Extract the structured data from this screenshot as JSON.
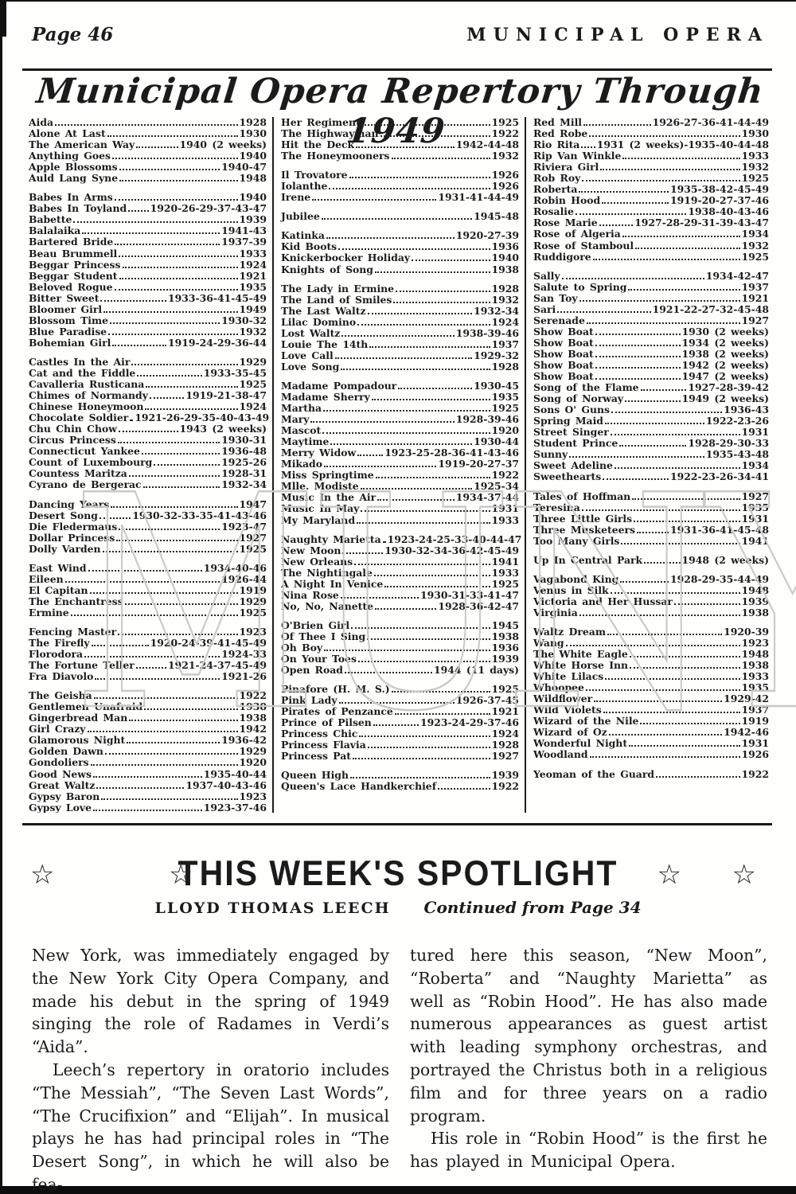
{
  "page": {
    "header_left": "Page 46",
    "header_right": "MUNICIPAL OPERA",
    "title": "Municipal Opera Repertory Through 1949"
  },
  "watermark": "MUNY",
  "repertory": {
    "columns": [
      {
        "groups": [
          [
            [
              "Aida",
              "1928"
            ],
            [
              "Alone At Last",
              "1930"
            ],
            [
              "The American Way",
              "1940 (2 weeks)"
            ],
            [
              "Anything Goes",
              "1940"
            ],
            [
              "Apple Blossoms",
              "1940-47"
            ],
            [
              "Auld Lang Syne",
              "1948"
            ]
          ],
          [
            [
              "Babes In Arms",
              "1940"
            ],
            [
              "Babes In Toyland",
              "1920-26-29-37-43-47"
            ],
            [
              "Babette",
              "1939"
            ],
            [
              "Balalaika",
              "1941-43"
            ],
            [
              "Bartered Bride",
              "1937-39"
            ],
            [
              "Beau Brummell",
              "1933"
            ],
            [
              "Beggar Princess",
              "1924"
            ],
            [
              "Beggar Student",
              "1921"
            ],
            [
              "Beloved Rogue",
              "1935"
            ],
            [
              "Bitter Sweet",
              "1933-36-41-45-49"
            ],
            [
              "Bloomer Girl",
              "1949"
            ],
            [
              "Blossom Time",
              "1930-32"
            ],
            [
              "Blue Paradise",
              "1932"
            ],
            [
              "Bohemian Girl",
              "1919-24-29-36-44"
            ]
          ],
          [
            [
              "Castles In the Air",
              "1929"
            ],
            [
              "Cat and the Fiddle",
              "1933-35-45"
            ],
            [
              "Cavalleria Rusticana",
              "1925"
            ],
            [
              "Chimes of Normandy",
              "1919-21-38-47"
            ],
            [
              "Chinese Honeymoon",
              "1924"
            ],
            [
              "Chocolate Soldier",
              "1921-26-29-35-40-43-49"
            ],
            [
              "Chu Chin Chow",
              "1943 (2 weeks)"
            ],
            [
              "Circus Princess",
              "1930-31"
            ],
            [
              "Connecticut Yankee",
              "1936-48"
            ],
            [
              "Count of Luxembourg",
              "1925-26"
            ],
            [
              "Countess Maritza",
              "1928-31"
            ],
            [
              "Cyrano de Bergerac",
              "1932-34"
            ]
          ],
          [
            [
              "Dancing Years",
              "1947"
            ],
            [
              "Desert Song",
              "1930-32-33-35-41-43-46"
            ],
            [
              "Die Fledermaus",
              "1923-47"
            ],
            [
              "Dollar Princess",
              "1927"
            ],
            [
              "Dolly Varden",
              "1925"
            ]
          ],
          [
            [
              "East Wind",
              "1934-40-46"
            ],
            [
              "Eileen",
              "1926-44"
            ],
            [
              "El Capitan",
              "1919"
            ],
            [
              "The Enchantress",
              "1929"
            ],
            [
              "Ermine",
              "1925"
            ]
          ],
          [
            [
              "Fencing Master",
              "1923"
            ],
            [
              "The Firefly",
              "1920-24-39-41-45-49"
            ],
            [
              "Florodora",
              "1924-33"
            ],
            [
              "The Fortune Teller",
              "1921-24-37-45-49"
            ],
            [
              "Fra Diavolo",
              "1921-26"
            ]
          ],
          [
            [
              "The Geisha",
              "1922"
            ],
            [
              "Gentlemen Unafraid",
              "1938"
            ],
            [
              "Gingerbread Man",
              "1938"
            ],
            [
              "Girl Crazy",
              "1942"
            ],
            [
              "Glamorous Night",
              "1936-42"
            ],
            [
              "Golden Dawn",
              "1929"
            ],
            [
              "Gondoliers",
              "1920"
            ],
            [
              "Good News",
              "1935-40-44"
            ],
            [
              "Great Waltz",
              "1937-40-43-46"
            ],
            [
              "Gypsy Baron",
              "1923"
            ],
            [
              "Gypsy Love",
              "1923-37-46"
            ]
          ]
        ]
      },
      {
        "groups": [
          [
            [
              "Her Regiment",
              "1925"
            ],
            [
              "The Highwayman",
              "1922"
            ],
            [
              "Hit the Deck",
              "1942-44-48"
            ],
            [
              "The Honeymooners",
              "1932"
            ]
          ],
          [
            [
              "Il Trovatore",
              "1926"
            ],
            [
              "Iolanthe",
              "1926"
            ],
            [
              "Irene",
              "1931-41-44-49"
            ]
          ],
          [
            [
              "Jubilee",
              "1945-48"
            ]
          ],
          [
            [
              "Katinka",
              "1920-27-39"
            ],
            [
              "Kid Boots",
              "1936"
            ],
            [
              "Knickerbocker Holiday",
              "1940"
            ],
            [
              "Knights of Song",
              "1938"
            ]
          ],
          [
            [
              "The Lady in Ermine",
              "1928"
            ],
            [
              "The Land of Smiles",
              "1932"
            ],
            [
              "The Last Waltz",
              "1932-34"
            ],
            [
              "Lilac Domino",
              "1924"
            ],
            [
              "Lost Waltz",
              "1938-39-46"
            ],
            [
              "Louie The 14th",
              "1937"
            ],
            [
              "Love Call",
              "1929-32"
            ],
            [
              "Love Song",
              "1928"
            ]
          ],
          [
            [
              "Madame Pompadour",
              "1930-45"
            ],
            [
              "Madame Sherry",
              "1935"
            ],
            [
              "Martha",
              "1925"
            ],
            [
              "Mary",
              "1928-39-46"
            ],
            [
              "Mascot",
              "1920"
            ],
            [
              "Maytime",
              "1930-44"
            ],
            [
              "Merry Widow",
              "1923-25-28-36-41-43-46"
            ],
            [
              "Mikado",
              "1919-20-27-37"
            ],
            [
              "Miss Springtime",
              "1922"
            ],
            [
              "Mlle. Modiste",
              "1925-34"
            ],
            [
              "Music In the Air",
              "1934-37-44"
            ],
            [
              "Music In May",
              "1931"
            ],
            [
              "My Maryland",
              "1933"
            ]
          ],
          [
            [
              "Naughty Marietta",
              "1923-24-25-33-40-44-47"
            ],
            [
              "New Moon",
              "1930-32-34-36-42-45-49"
            ],
            [
              "New Orleans",
              "1941"
            ],
            [
              "The Nightingale",
              "1933"
            ],
            [
              "A Night In Venice",
              "1925"
            ],
            [
              "Nina Rose",
              "1930-31-33-41-47"
            ],
            [
              "No, No, Nanette",
              "1928-36-42-47"
            ]
          ],
          [
            [
              "O'Brien Girl",
              "1945"
            ],
            [
              "Of Thee I Sing",
              "1938"
            ],
            [
              "Oh Boy",
              "1936"
            ],
            [
              "On Your Toes",
              "1939"
            ],
            [
              "Open Road",
              "1944 (11 days)"
            ]
          ],
          [
            [
              "Pinafore (H. M. S.)",
              "1925"
            ],
            [
              "Pink Lady",
              "1926-37-45"
            ],
            [
              "Pirates of Penzance",
              "1921"
            ],
            [
              "Prince of Pilsen",
              "1923-24-29-37-46"
            ],
            [
              "Princess Chic",
              "1924"
            ],
            [
              "Princess Flavia",
              "1928"
            ],
            [
              "Princess Pat",
              "1927"
            ]
          ],
          [
            [
              "Queen High",
              "1939"
            ],
            [
              "Queen's Lace Handkerchief",
              "1922"
            ]
          ]
        ]
      },
      {
        "groups": [
          [
            [
              "Red Mill",
              "1926-27-36-41-44-49"
            ],
            [
              "Red Robe",
              "1930"
            ],
            [
              "Rio Rita",
              "1931 (2 weeks)-1935-40-44-48"
            ],
            [
              "Rip Van Winkle",
              "1933"
            ],
            [
              "Riviera Girl",
              "1932"
            ],
            [
              "Rob Roy",
              "1925"
            ],
            [
              "Roberta",
              "1935-38-42-45-49"
            ],
            [
              "Robin Hood",
              "1919-20-27-37-46"
            ],
            [
              "Rosalie",
              "1938-40-43-46"
            ],
            [
              "Rose Marie",
              "1927-28-29-31-39-43-47"
            ],
            [
              "Rose of Algeria",
              "1934"
            ],
            [
              "Rose of Stamboul",
              "1932"
            ],
            [
              "Ruddigore",
              "1925"
            ]
          ],
          [
            [
              "Sally",
              "1934-42-47"
            ],
            [
              "Salute to Spring",
              "1937"
            ],
            [
              "San Toy",
              "1921"
            ],
            [
              "Sari",
              "1921-22-27-32-45-48"
            ],
            [
              "Serenade",
              "1927"
            ],
            [
              "Show Boat",
              "1930 (2 weeks)"
            ],
            [
              "Show Boat",
              "1934 (2 weeks)"
            ],
            [
              "Show Boat",
              "1938 (2 weeks)"
            ],
            [
              "Show Boat",
              "1942 (2 weeks)"
            ],
            [
              "Show Boat",
              "1947 (2 weeks)"
            ],
            [
              "Song of the Flame",
              "1927-28-39-42"
            ],
            [
              "Song of Norway",
              "1949 (2 weeks)"
            ],
            [
              "Sons O' Guns",
              "1936-43"
            ],
            [
              "Spring Maid",
              "1922-23-26"
            ],
            [
              "Street Singer",
              "1931"
            ],
            [
              "Student Prince",
              "1928-29-30-33"
            ],
            [
              "Sunny",
              "1935-43-48"
            ],
            [
              "Sweet Adeline",
              "1934"
            ],
            [
              "Sweethearts",
              "1922-23-26-34-41"
            ]
          ],
          [
            [
              "Tales of Hoffman",
              "1927"
            ],
            [
              "Teresina",
              "1935"
            ],
            [
              "Three Little Girls",
              "1931"
            ],
            [
              "Three Musketeers",
              "1931-36-41-45-48"
            ],
            [
              "Too Many Girls",
              "1941"
            ]
          ],
          [
            [
              "Up In Central Park",
              "1948 (2 weeks)"
            ]
          ],
          [
            [
              "Vagabond King",
              "1928-29-35-44-49"
            ],
            [
              "Venus in Silk",
              "1948"
            ],
            [
              "Victoria and Her Hussar",
              "1939"
            ],
            [
              "Virginia",
              "1938"
            ]
          ],
          [
            [
              "Waltz Dream",
              "1920-39"
            ],
            [
              "Wang",
              "1923"
            ],
            [
              "The White Eagle",
              "1948"
            ],
            [
              "White Horse Inn",
              "1938"
            ],
            [
              "White Lilacs",
              "1933"
            ],
            [
              "Whoopee",
              "1935"
            ],
            [
              "Wildflower",
              "1929-42"
            ],
            [
              "Wild Violets",
              "1937"
            ],
            [
              "Wizard of the Nile",
              "1919"
            ],
            [
              "Wizard of Oz",
              "1942-46"
            ],
            [
              "Wonderful Night",
              "1931"
            ],
            [
              "Woodland",
              "1926"
            ]
          ],
          [
            [
              "Yeoman of the Guard",
              "1922"
            ]
          ]
        ]
      }
    ]
  },
  "spotlight": {
    "title": "THIS WEEK'S SPOTLIGHT",
    "star": "☆",
    "byline": "LLOYD THOMAS LEECH",
    "continued": "Continued from Page 34",
    "col1_paragraphs": [
      "New York, was immediately engaged by the New York City Opera Company, and made his debut in the spring of 1949 singing the role of Radames in Verdi’s “Aida”.",
      "Leech’s repertory in oratorio includes “The Messiah”, “The Seven Last Words”, “The Crucifixion” and “Elijah”. In musical plays he has had principal roles in “The Desert Song”, in which he will also be fea-"
    ],
    "col2_paragraphs": [
      "tured here this season, “New Moon”, “Roberta” and “Naughty Marietta” as well as “Robin Hood”. He has also made numerous appearances as guest artist with leading symphony orchestras, and portrayed the Christus both in a religious film and for three years on a radio program.",
      "His role in “Robin Hood” is the first he has played in Municipal Opera."
    ]
  }
}
